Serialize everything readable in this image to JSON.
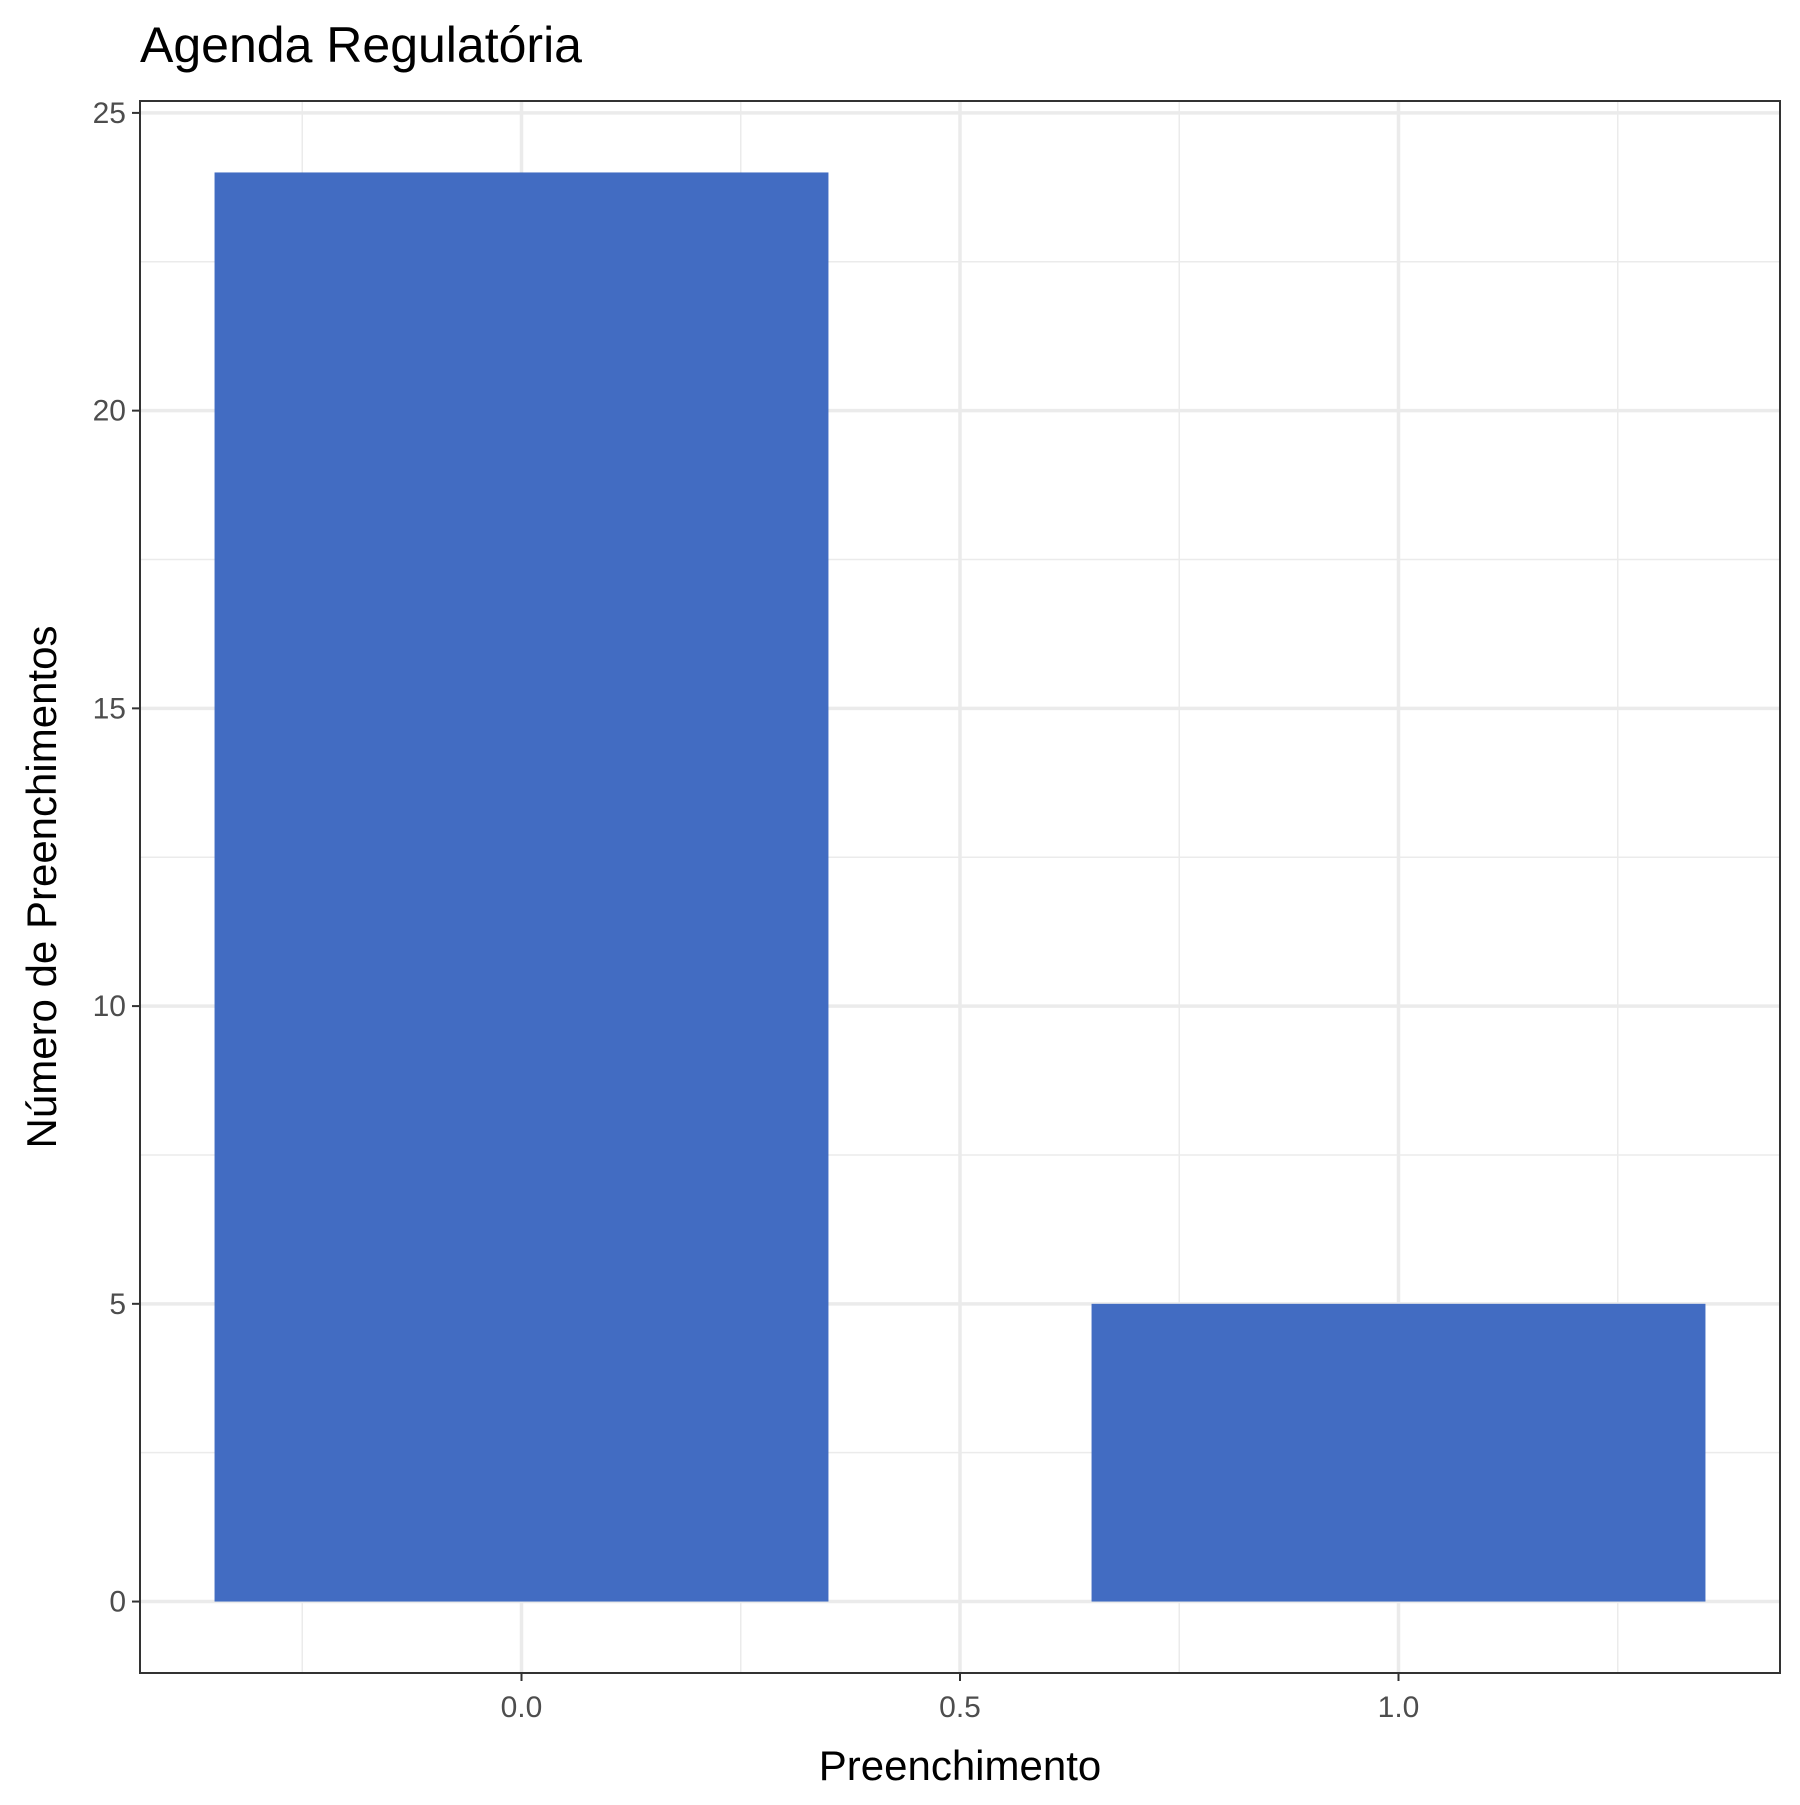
{
  "chart_data": {
    "type": "bar",
    "title": "Agenda Regulatória",
    "xlabel": "Preenchimento",
    "ylabel": "Número de Preenchimentos",
    "bars": [
      {
        "x": 0,
        "value": 24
      },
      {
        "x": 1,
        "value": 5
      }
    ],
    "bar_width": 0.7,
    "xlim": [
      -0.435,
      1.435
    ],
    "ylim": [
      -1.2,
      25.2
    ],
    "x_ticks": [
      0,
      0.5,
      1
    ],
    "x_tick_labels": [
      "0.0",
      "0.5",
      "1.0"
    ],
    "y_ticks": [
      0,
      5,
      10,
      15,
      20,
      25
    ],
    "y_tick_labels": [
      "0",
      "5",
      "10",
      "15",
      "20",
      "25"
    ],
    "x_minor_ticks": [
      -0.25,
      0.25,
      0.75,
      1.25
    ],
    "y_minor_ticks": [
      2.5,
      7.5,
      12.5,
      17.5,
      22.5
    ],
    "grid": true,
    "bar_color": "#426CC2",
    "grid_color": "#EBEBEB",
    "panel_border_color": "#333333"
  }
}
